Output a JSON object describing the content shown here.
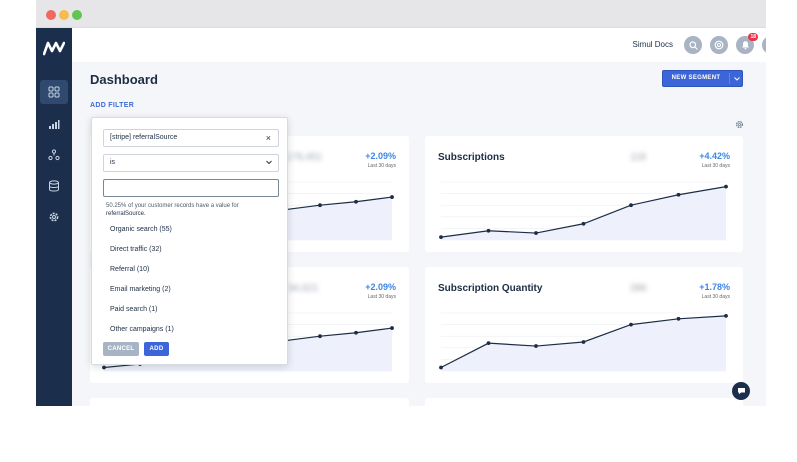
{
  "header": {
    "brand": "Simul Docs",
    "notification_count": "18"
  },
  "page": {
    "title": "Dashboard",
    "add_filter": "ADD FILTER",
    "new_segment": "NEW SEGMENT"
  },
  "cards": [
    {
      "title": "",
      "value": "179,451",
      "change": "+2.09%",
      "period": "Last 30 days",
      "values": [
        0.06,
        0.12,
        0.22,
        0.3,
        0.4,
        0.52,
        0.6,
        0.66,
        0.74
      ]
    },
    {
      "title": "Subscriptions",
      "value": "118",
      "change": "+4.42%",
      "period": "Last 30 days",
      "values": [
        0.05,
        0.16,
        0.12,
        0.28,
        0.6,
        0.78,
        0.92
      ]
    },
    {
      "title": "",
      "value": "34,621",
      "change": "+2.09%",
      "period": "Last 30 days",
      "values": [
        0.06,
        0.12,
        0.22,
        0.3,
        0.4,
        0.52,
        0.6,
        0.66,
        0.74
      ]
    },
    {
      "title": "Subscription Quantity",
      "value": "286",
      "change": "+1.78%",
      "period": "Last 30 days",
      "values": [
        0.06,
        0.48,
        0.43,
        0.5,
        0.8,
        0.9,
        0.95
      ]
    }
  ],
  "filter": {
    "attribute": "[stripe] referralSource",
    "operator": "is",
    "input_value": "",
    "note_prefix": "50.25% of your customer records have a value for",
    "note_field": "referralSource.",
    "options": [
      "Organic search (55)",
      "Direct traffic (32)",
      "Referral (10)",
      "Email marketing (2)",
      "Paid search (1)",
      "Other campaigns (1)"
    ],
    "cancel": "CANCEL",
    "add": "ADD"
  },
  "colors": {
    "sidebar": "#1b2f4c",
    "accent": "#3c65d8",
    "line": "#1d2d44",
    "fill": "#eef0fb",
    "positive": "#3d86e3"
  }
}
